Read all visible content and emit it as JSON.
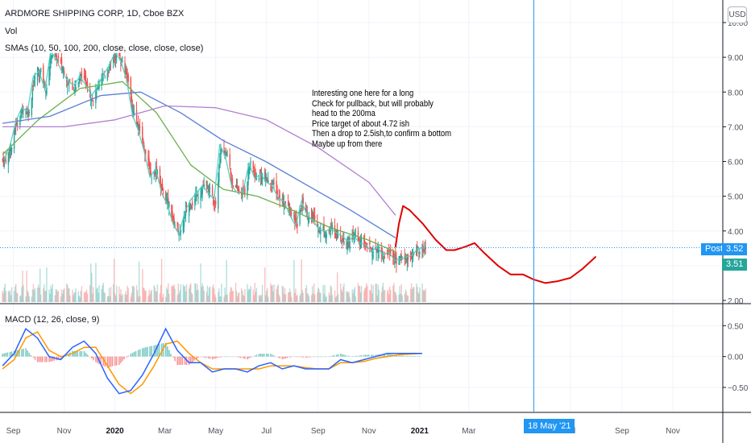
{
  "header": {
    "title": "ARDMORE SHIPPING CORP, 1D, Cboe BZX",
    "vol_label": "Vol",
    "sma_label": "SMAs (10, 50, 100, 200, close, close, close, close)",
    "macd_label": "MACD (12, 26, close, 9)",
    "currency_button": "USD"
  },
  "annotation": {
    "lines": [
      "Interesting one here for a long",
      "Check for pullback, but will probably",
      "head to the 200ma",
      "Price target of about 4.72 ish",
      "Then a drop to 2.5ish,to confirm a bottom",
      "Maybe up from there"
    ]
  },
  "badges": {
    "post_label": "Post",
    "post_value": "3.52",
    "last_value": "3.51",
    "crosshair_date": "18 May '21"
  },
  "colors": {
    "up": "#26a69a",
    "down": "#ef5350",
    "sma10": "#4dd0c4",
    "sma50": "#6ab04c",
    "sma100": "#5b7fd6",
    "sma200": "#b07fd0",
    "macd": "#2962ff",
    "signal": "#ff9800",
    "projection": "#e00000",
    "crosshair": "#2196f3",
    "post_badge": "#2196f3",
    "last_badge": "#26a69a"
  },
  "chart_data": {
    "type": "line",
    "title": "ARDMORE SHIPPING CORP, 1D, Cboe BZX",
    "price_axis": {
      "ticks": [
        2.0,
        3.0,
        4.0,
        5.0,
        6.0,
        7.0,
        8.0,
        9.0,
        10.0
      ],
      "tick_labels": [
        "2.00",
        "3.00",
        "4.00",
        "5.00",
        "6.00",
        "7.00",
        "8.00",
        "9.00",
        "10.00"
      ],
      "range": [
        2.0,
        10.0
      ]
    },
    "macd_axis": {
      "ticks": [
        0.5,
        0.0,
        -0.5
      ],
      "tick_labels": [
        "0.50",
        "0.00",
        "−0.50"
      ],
      "range": [
        -0.8,
        0.7
      ]
    },
    "time_axis": {
      "labels": [
        "Sep",
        "Nov",
        "2020",
        "Mar",
        "May",
        "Jul",
        "Sep",
        "Nov",
        "2021",
        "Mar",
        "Jul",
        "Sep",
        "Nov"
      ],
      "bold": [
        "2020",
        "2021"
      ],
      "range": [
        "2019-08-16",
        "2021-12-31"
      ]
    },
    "closes": {
      "start": "2019-08-19",
      "step_days": 7,
      "values": [
        6.05,
        6.45,
        7.15,
        7.55,
        7.45,
        8.45,
        8.6,
        8.05,
        9.2,
        8.9,
        8.55,
        8.3,
        8.2,
        8.45,
        8.2,
        7.9,
        8.15,
        8.5,
        8.75,
        9.15,
        8.9,
        8.35,
        7.35,
        6.9,
        6.3,
        5.55,
        5.8,
        5.1,
        4.75,
        4.2,
        3.9,
        4.55,
        4.9,
        5.1,
        5.3,
        5.1,
        4.9,
        6.5,
        6.1,
        5.3,
        5.1,
        5.15,
        5.95,
        5.5,
        5.65,
        5.4,
        5.3,
        4.95,
        4.85,
        4.45,
        4.15,
        4.85,
        4.45,
        4.3,
        4.05,
        4.0,
        4.05,
        3.95,
        3.85,
        3.7,
        3.85,
        3.65,
        3.6,
        3.4,
        3.55,
        3.3,
        3.4,
        3.15,
        3.2,
        3.25,
        3.3,
        3.5,
        3.51
      ]
    },
    "sma": [
      {
        "name": "SMA 50",
        "points": [
          [
            "2019-08-19",
            6.2
          ],
          [
            "2019-10-01",
            7.2
          ],
          [
            "2019-11-20",
            8.1
          ],
          [
            "2020-01-10",
            8.3
          ],
          [
            "2020-02-20",
            7.4
          ],
          [
            "2020-04-01",
            5.9
          ],
          [
            "2020-05-10",
            5.2
          ],
          [
            "2020-06-20",
            5.0
          ],
          [
            "2020-08-01",
            4.6
          ],
          [
            "2020-09-15",
            4.1
          ],
          [
            "2020-10-30",
            3.75
          ],
          [
            "2020-12-03",
            3.4
          ]
        ]
      },
      {
        "name": "SMA 100",
        "points": [
          [
            "2019-08-19",
            7.1
          ],
          [
            "2019-10-15",
            7.3
          ],
          [
            "2019-12-15",
            7.9
          ],
          [
            "2020-02-01",
            8.0
          ],
          [
            "2020-03-20",
            7.4
          ],
          [
            "2020-05-10",
            6.6
          ],
          [
            "2020-06-30",
            6.0
          ],
          [
            "2020-08-20",
            5.3
          ],
          [
            "2020-10-10",
            4.6
          ],
          [
            "2020-12-03",
            3.8
          ]
        ]
      },
      {
        "name": "SMA 200",
        "points": [
          [
            "2019-08-19",
            7.0
          ],
          [
            "2019-11-01",
            7.0
          ],
          [
            "2020-01-01",
            7.2
          ],
          [
            "2020-03-01",
            7.6
          ],
          [
            "2020-05-01",
            7.55
          ],
          [
            "2020-07-01",
            7.2
          ],
          [
            "2020-09-01",
            6.4
          ],
          [
            "2020-11-01",
            5.4
          ],
          [
            "2020-12-03",
            4.45
          ]
        ]
      }
    ],
    "projection": {
      "name": "Projected path",
      "points": [
        [
          "2020-12-03",
          3.55
        ],
        [
          "2020-12-07",
          4.2
        ],
        [
          "2020-12-12",
          4.72
        ],
        [
          "2020-12-20",
          4.6
        ],
        [
          "2021-01-05",
          4.2
        ],
        [
          "2021-01-20",
          3.75
        ],
        [
          "2021-02-02",
          3.45
        ],
        [
          "2021-02-12",
          3.45
        ],
        [
          "2021-02-25",
          3.55
        ],
        [
          "2021-03-08",
          3.65
        ],
        [
          "2021-03-18",
          3.4
        ],
        [
          "2021-04-05",
          3.0
        ],
        [
          "2021-04-20",
          2.75
        ],
        [
          "2021-05-05",
          2.75
        ],
        [
          "2021-05-18",
          2.6
        ],
        [
          "2021-06-01",
          2.5
        ],
        [
          "2021-06-15",
          2.55
        ],
        [
          "2021-07-01",
          2.65
        ],
        [
          "2021-07-15",
          2.9
        ],
        [
          "2021-07-31",
          3.25
        ]
      ]
    },
    "macd": {
      "start": "2019-08-19",
      "step_days": 14,
      "macd": [
        -0.15,
        0.05,
        0.45,
        0.3,
        0.0,
        -0.05,
        0.15,
        0.25,
        0.05,
        -0.35,
        -0.6,
        -0.55,
        -0.3,
        0.05,
        0.45,
        0.1,
        -0.1,
        -0.1,
        -0.25,
        -0.2,
        -0.2,
        -0.25,
        -0.15,
        -0.1,
        -0.2,
        -0.15,
        -0.2,
        -0.2,
        -0.2,
        -0.05,
        -0.1,
        -0.05,
        0.0,
        0.05,
        0.05,
        0.05,
        0.05
      ],
      "signal": [
        -0.2,
        -0.05,
        0.3,
        0.4,
        0.1,
        0.0,
        0.05,
        0.15,
        0.15,
        -0.15,
        -0.45,
        -0.6,
        -0.45,
        -0.15,
        0.2,
        0.25,
        0.05,
        -0.1,
        -0.2,
        -0.2,
        -0.2,
        -0.2,
        -0.2,
        -0.15,
        -0.15,
        -0.15,
        -0.18,
        -0.2,
        -0.2,
        -0.1,
        -0.1,
        -0.08,
        -0.03,
        0.0,
        0.03,
        0.04,
        0.05
      ]
    },
    "crosshair": {
      "date": "2021-05-18"
    },
    "legend": "top-left"
  }
}
